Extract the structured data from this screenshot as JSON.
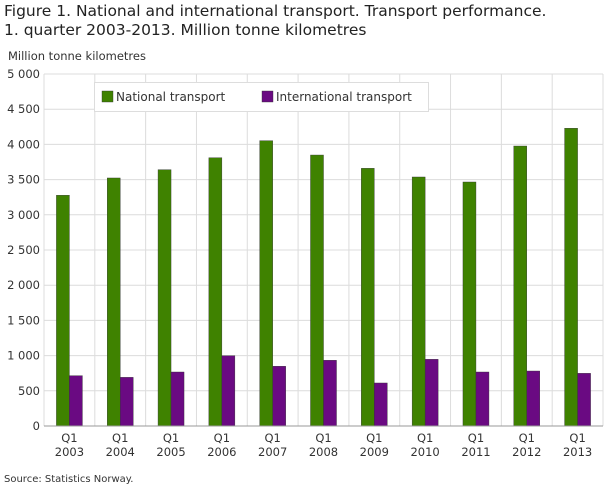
{
  "title_line1": "Figure 1. National and international transport. Transport performance.",
  "title_line2": "1. quarter 2003-2013. Million tonne kilometres",
  "source": "Source: Statistics Norway.",
  "chart_data": {
    "type": "bar",
    "ylabel": "Million tonne kilometres",
    "ylim": [
      0,
      5000
    ],
    "yticks": [
      0,
      500,
      1000,
      1500,
      2000,
      2500,
      3000,
      3500,
      4000,
      4500,
      5000
    ],
    "ytick_labels": [
      "0",
      "500",
      "1 000",
      "1 500",
      "2 000",
      "2 500",
      "3 000",
      "3 500",
      "4 000",
      "4 500",
      "5 000"
    ],
    "categories": [
      [
        "Q1",
        "2003"
      ],
      [
        "Q1",
        "2004"
      ],
      [
        "Q1",
        "2005"
      ],
      [
        "Q1",
        "2006"
      ],
      [
        "Q1",
        "2007"
      ],
      [
        "Q1",
        "2008"
      ],
      [
        "Q1",
        "2009"
      ],
      [
        "Q1",
        "2010"
      ],
      [
        "Q1",
        "2011"
      ],
      [
        "Q1",
        "2012"
      ],
      [
        "Q1",
        "2013"
      ]
    ],
    "grid": true,
    "legend": "top",
    "series": [
      {
        "name": "National transport",
        "color": "#3f8200",
        "values": [
          3277,
          3523,
          3641,
          3811,
          4053,
          3849,
          3660,
          3537,
          3466,
          3977,
          4229
        ]
      },
      {
        "name": "International transport",
        "color": "#6a0a82",
        "values": [
          715,
          691,
          767,
          999,
          848,
          933,
          611,
          947,
          767,
          781,
          748
        ]
      }
    ]
  }
}
